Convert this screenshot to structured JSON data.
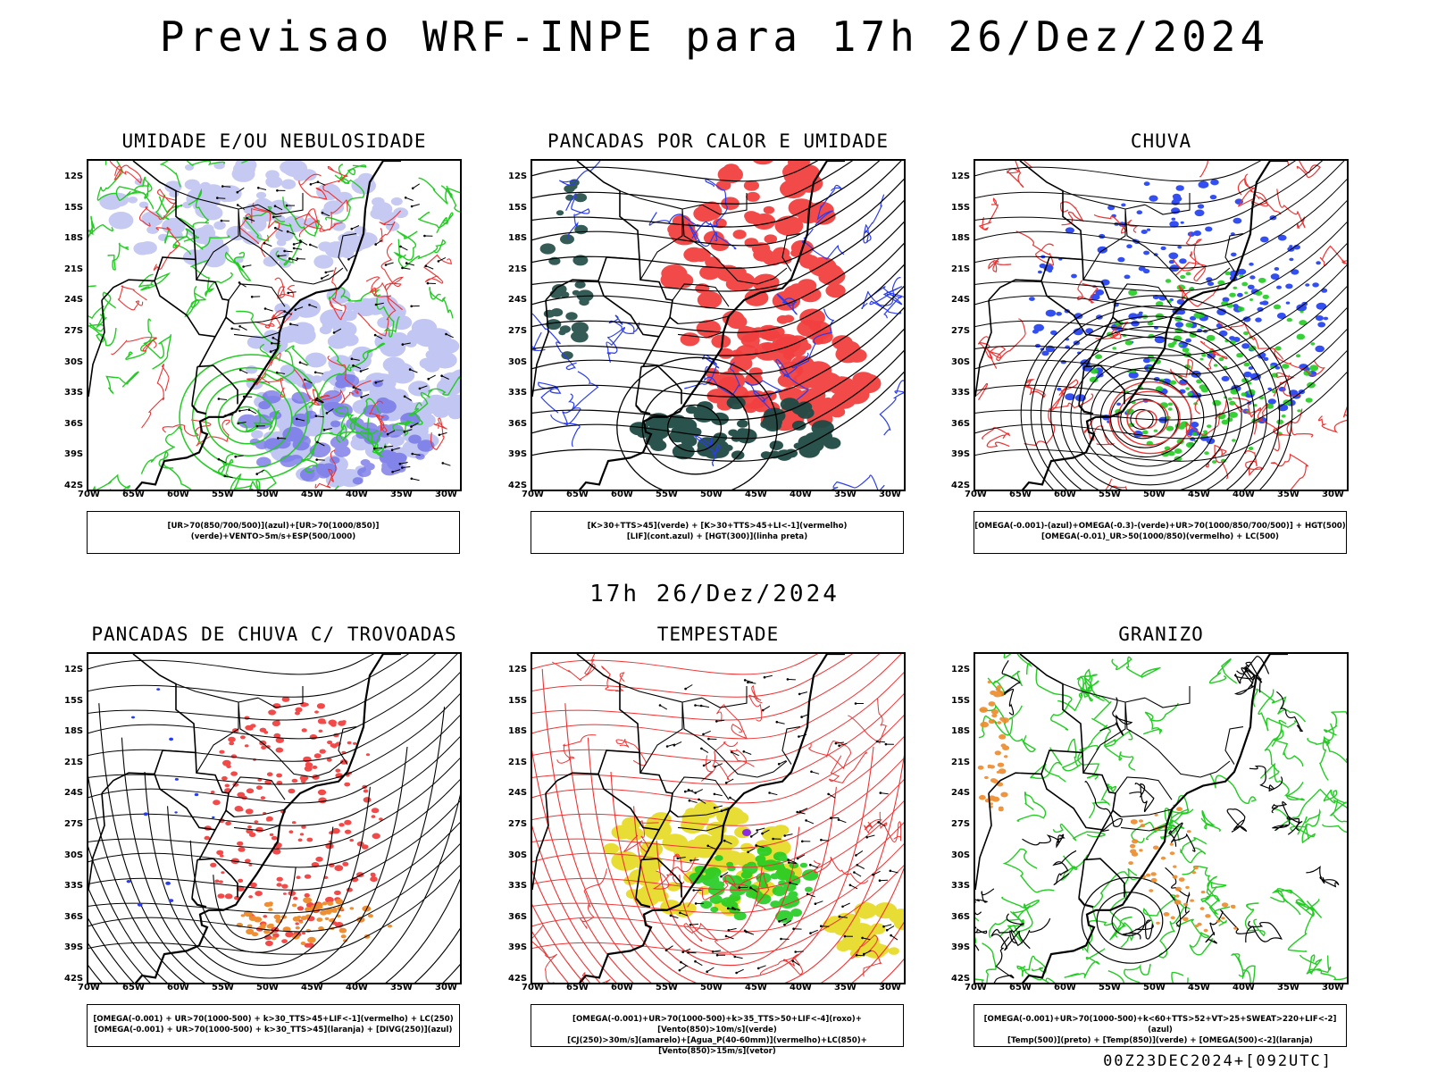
{
  "header": {
    "title": "Previsao WRF-INPE  para 17h 26/Dez/2024"
  },
  "mid_date": "17h 26/Dez/2024",
  "footer": {
    "run": "00Z23DEC2024+[092UTC]"
  },
  "axes": {
    "lat_labels": [
      "12S",
      "15S",
      "18S",
      "21S",
      "24S",
      "27S",
      "30S",
      "33S",
      "36S",
      "39S",
      "42S"
    ],
    "lon_labels": [
      "70W",
      "65W",
      "60W",
      "55W",
      "50W",
      "45W",
      "40W",
      "35W",
      "30W"
    ]
  },
  "panels": [
    {
      "title": "UMIDADE E/OU NEBULOSIDADE",
      "legend": [
        "[UR>70(850/700/500)](azul)+[UR>70(1000/850)](verde)+VENTO>5m/s+ESP(500/1000)"
      ],
      "colors": {
        "fill1": "#b8bdf0",
        "fill2": "#6f6fe6",
        "line1": "#22cc22",
        "line2": "#ee3333"
      }
    },
    {
      "title": "PANCADAS POR CALOR E UMIDADE",
      "legend": [
        "[K>30+TTS>45](verde) + [K>30+TTS>45+LI<-1](vermelho)",
        "[LIF](cont.azul) + [HGT(300)](linha preta)"
      ],
      "colors": {
        "fill1": "#1f4a44",
        "fill2": "#f24040",
        "line1": "#2a3cf0",
        "line2": "#000000"
      }
    },
    {
      "title": "CHUVA",
      "legend": [
        "[OMEGA(-0.001)-(azul)+OMEGA(-0.3)-(verde)+UR>70(1000/850/700/500)] + HGT(500)",
        "[OMEGA(-0.01)_UR>50(1000/850)(vermelho) + LC(500)"
      ],
      "colors": {
        "fill1": "#1e3cf0",
        "fill2": "#22cc22",
        "line1": "#ee3333",
        "line2": "#000000"
      }
    },
    {
      "title": "PANCADAS DE CHUVA C/ TROVOADAS",
      "legend": [
        "[OMEGA(-0.001) + UR>70(1000-500) + k>30_TTS>45+LIF<-1](vermelho) + LC(250)",
        "[OMEGA(-0.001) + UR>70(1000-500) + k>30_TTS>45](laranja) + [DIVG(250)](azul)"
      ],
      "colors": {
        "fill1": "#f24040",
        "fill2": "#ee8a2a",
        "line1": "#2a3cf0",
        "line2": "#000000"
      }
    },
    {
      "title": "TEMPESTADE",
      "legend": [
        "[OMEGA(-0.001)+UR>70(1000-500)+k>35_TTS>50+LIF<-4](roxo)+[Vento(850)>10m/s](verde)",
        "[CJ(250)>30m/s](amarelo)+[Agua_P(40-60mm)](vermelho)+LC(850)+[Vento(850)>15m/s](vetor)"
      ],
      "colors": {
        "fill1": "#e6dc2a",
        "fill2": "#22cc22",
        "line1": "#ee3333",
        "line2": "#8a2be2"
      }
    },
    {
      "title": "GRANIZO",
      "legend": [
        "[OMEGA(-0.001)+UR>70(1000-500)+k<60+TTS>52+VT>25+SWEAT>220+LIF<-2](azul)",
        "[Temp(500)](preto) + [Temp(850)](verde) + [OMEGA(500)<-2](laranja)"
      ],
      "colors": {
        "fill1": "#ee8a2a",
        "fill2": "#000000",
        "line1": "#22cc22",
        "line2": "#000000"
      }
    }
  ]
}
